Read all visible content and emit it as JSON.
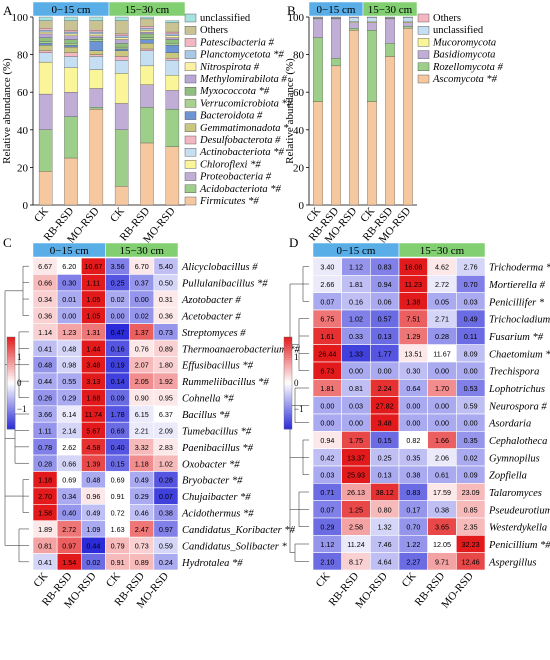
{
  "chart_data": [
    {
      "panel_letter": "A",
      "type": "bar",
      "stacked": true,
      "ylabel": "Relative abundance (%)",
      "ylim": [
        0,
        100
      ],
      "yticks": [
        "0",
        "20",
        "40",
        "60",
        "80",
        "100"
      ],
      "depth_headers": [
        "0−15 cm",
        "15−30 cm"
      ],
      "categories": [
        "CK",
        "RB-RSD",
        "MO-RSD",
        "CK",
        "RB-RSD",
        "MO-RSD"
      ],
      "series": [
        {
          "name": "Firmicutes *#",
          "color": "#f5c8a0",
          "values": [
            18,
            25,
            51,
            10,
            33,
            31
          ]
        },
        {
          "name": "Acidobacteriota *#",
          "color": "#9dcf8b",
          "values": [
            22,
            22,
            1,
            30,
            19,
            20
          ]
        },
        {
          "name": "Proteobacteria #",
          "color": "#c1aed6",
          "values": [
            19,
            13,
            10,
            14,
            12,
            10
          ]
        },
        {
          "name": "Chloroflexi *#",
          "color": "#fbf59a",
          "values": [
            17,
            13,
            10,
            16,
            10,
            8
          ]
        },
        {
          "name": "Actinobacteriota *#",
          "color": "#c6def1",
          "values": [
            5,
            6,
            7,
            7,
            8,
            8
          ]
        },
        {
          "name": "Desulfobacterota #",
          "color": "#f4b6c2",
          "values": [
            1,
            2,
            1,
            2,
            1,
            1
          ]
        },
        {
          "name": "Gemmatimonadota *",
          "color": "#c9c77f",
          "values": [
            3,
            3,
            2,
            3,
            3,
            3
          ]
        },
        {
          "name": "Bacteroidota #",
          "color": "#6e95d3",
          "values": [
            1,
            1,
            5,
            1,
            2,
            4
          ]
        },
        {
          "name": "Verrucomicrobiota *#",
          "color": "#a9d18e",
          "values": [
            1,
            1,
            1,
            1,
            1,
            1
          ]
        },
        {
          "name": "Myxococcota *#",
          "color": "#8fbf7f",
          "values": [
            2,
            2,
            1,
            2,
            2,
            2
          ]
        },
        {
          "name": "Methylomirabilota #",
          "color": "#b9a7d6",
          "values": [
            2,
            2,
            1,
            2,
            1,
            1
          ]
        },
        {
          "name": "Nitrospirota #",
          "color": "#fdf0a0",
          "values": [
            1,
            1,
            1,
            1,
            1,
            1
          ]
        },
        {
          "name": "Planctomycetota *#",
          "color": "#a8c8e8",
          "values": [
            1,
            1,
            1,
            1,
            1,
            1
          ]
        },
        {
          "name": "Patescibacteria #",
          "color": "#f4b6c2",
          "values": [
            1,
            1,
            1,
            1,
            1,
            1
          ]
        },
        {
          "name": "Others",
          "color": "#c9c292",
          "values": [
            4,
            5,
            5,
            7,
            4,
            5
          ]
        },
        {
          "name": "unclassified",
          "color": "#a5e2e0",
          "values": [
            2,
            2,
            2,
            2,
            1,
            1
          ]
        }
      ]
    },
    {
      "panel_letter": "B",
      "type": "bar",
      "stacked": true,
      "ylabel": "Relative abundance (%)",
      "ylim": [
        0,
        100
      ],
      "yticks": [
        "0",
        "20",
        "40",
        "60",
        "80",
        "100"
      ],
      "depth_headers": [
        "0−15 cm",
        "15−30 cm"
      ],
      "categories": [
        "CK",
        "RB-RSD",
        "MO-RSD",
        "CK",
        "RB-RSD",
        "MO-RSD"
      ],
      "series": [
        {
          "name": "Ascomycota *#",
          "color": "#f5c8a0",
          "values": [
            55,
            74,
            93,
            55,
            79,
            94
          ]
        },
        {
          "name": "Rozellomycota #",
          "color": "#9dcf8b",
          "values": [
            34,
            4,
            1,
            38,
            7,
            1
          ]
        },
        {
          "name": "Basidiomycota",
          "color": "#c1aed6",
          "values": [
            10,
            21,
            3,
            4,
            13,
            2
          ]
        },
        {
          "name": "Mucoromycota",
          "color": "#fbf59a",
          "values": [
            0.3,
            0.3,
            0.5,
            0.4,
            0.3,
            0.4
          ]
        },
        {
          "name": "unclassified",
          "color": "#c6def1",
          "values": [
            0.5,
            0.5,
            2.3,
            2.4,
            0.5,
            2.4
          ]
        },
        {
          "name": "Others",
          "color": "#f4b6c2",
          "values": [
            0.2,
            0.2,
            0.2,
            0.2,
            0.2,
            0.2
          ]
        }
      ]
    },
    {
      "panel_letter": "C",
      "type": "heatmap",
      "depth_headers": [
        "0−15 cm",
        "15−30 cm"
      ],
      "columns": [
        "CK",
        "RB-RSD",
        "MO-RSD",
        "CK",
        "RB-RSD",
        "MO-RSD"
      ],
      "colorbar": {
        "ticks": [
          "1",
          "0",
          "−1"
        ],
        "high": "#e31a1c",
        "mid": "#ffffff",
        "low": "#2b2bd9"
      },
      "rows": [
        {
          "label": "Alicyclobacillus #",
          "values": [
            "6.67",
            "6.20",
            "10.67",
            "3.56",
            "6.70",
            "5.40"
          ],
          "z": [
            0.1,
            0.0,
            1.0,
            -0.6,
            0.1,
            -0.3
          ]
        },
        {
          "label": "Pullulanibacillus *#",
          "values": [
            "0.66",
            "0.30",
            "1.11",
            "0.25",
            "0.37",
            "0.50"
          ],
          "z": [
            0.3,
            -0.6,
            1.0,
            -0.8,
            -0.5,
            -0.2
          ]
        },
        {
          "label": "Azotobacter #",
          "values": [
            "0.34",
            "0.01",
            "1.05",
            "0.02",
            "0.00",
            "0.31"
          ],
          "z": [
            0.2,
            -0.4,
            1.1,
            -0.4,
            -0.5,
            0.1
          ]
        },
        {
          "label": "Acetobacter #",
          "values": [
            "0.36",
            "0.00",
            "1.05",
            "0.00",
            "0.02",
            "0.36"
          ],
          "z": [
            0.2,
            -0.4,
            1.1,
            -0.5,
            -0.5,
            0.1
          ]
        },
        {
          "label": "Streptomyces #",
          "values": [
            "1.14",
            "1.23",
            "1.31",
            "0.47",
            "1.37",
            "0.73"
          ],
          "z": [
            0.2,
            0.4,
            0.6,
            -1.0,
            0.7,
            -0.5
          ]
        },
        {
          "label": "Thermoanaerobacterium *#",
          "values": [
            "0.41",
            "0.48",
            "1.44",
            "0.16",
            "0.76",
            "0.89"
          ],
          "z": [
            -0.3,
            -0.2,
            1.0,
            -0.8,
            0.1,
            0.2
          ]
        },
        {
          "label": "Effusibacillus *#",
          "values": [
            "0.48",
            "0.98",
            "3.48",
            "0.19",
            "2.07",
            "1.80"
          ],
          "z": [
            -0.5,
            -0.2,
            1.0,
            -0.9,
            0.3,
            0.2
          ]
        },
        {
          "label": "Rummeliibacillus *#",
          "values": [
            "0.44",
            "0.55",
            "3.13",
            "0.14",
            "2.05",
            "1.92"
          ],
          "z": [
            -0.4,
            -0.4,
            1.0,
            -0.9,
            0.5,
            0.4
          ]
        },
        {
          "label": "Cohnella *#",
          "values": [
            "0.26",
            "0.29",
            "1.68",
            "0.09",
            "0.90",
            "0.95"
          ],
          "z": [
            -0.5,
            -0.4,
            1.0,
            -0.7,
            0.1,
            0.1
          ]
        },
        {
          "label": "Bacillus *#",
          "values": [
            "3.66",
            "6.14",
            "11.74",
            "1.78",
            "6.15",
            "6.37"
          ],
          "z": [
            -0.4,
            -0.1,
            1.0,
            -0.8,
            -0.1,
            0.0
          ]
        },
        {
          "label": "Tumebacillus *#",
          "values": [
            "1.11",
            "2.14",
            "5.67",
            "0.69",
            "2.21",
            "2.09"
          ],
          "z": [
            -0.5,
            -0.2,
            1.0,
            -0.7,
            -0.1,
            -0.1
          ]
        },
        {
          "label": "Paenibacillus *#",
          "values": [
            "0.78",
            "2.62",
            "4.58",
            "0.40",
            "3.32",
            "2.83"
          ],
          "z": [
            -0.6,
            0.0,
            0.9,
            -0.8,
            0.3,
            0.1
          ]
        },
        {
          "label": "Oxobacter *#",
          "values": [
            "0.28",
            "0.66",
            "1.39",
            "0.15",
            "1.18",
            "1.02"
          ],
          "z": [
            -0.5,
            -0.2,
            0.8,
            -0.7,
            0.5,
            0.3
          ]
        },
        {
          "label": "Bryobacter *#",
          "values": [
            "1.18",
            "0.69",
            "0.48",
            "0.69",
            "0.49",
            "0.28"
          ],
          "z": [
            1.0,
            0.0,
            -0.4,
            0.0,
            -0.4,
            -0.8
          ]
        },
        {
          "label": "Chujaibacter *#",
          "values": [
            "2.70",
            "0.34",
            "0.96",
            "0.91",
            "0.29",
            "0.07"
          ],
          "z": [
            1.0,
            -0.4,
            0.1,
            0.0,
            -0.4,
            -0.9
          ]
        },
        {
          "label": "Acidothermus *#",
          "values": [
            "1.58",
            "0.40",
            "0.49",
            "0.72",
            "0.46",
            "0.38"
          ],
          "z": [
            1.0,
            -0.5,
            -0.3,
            0.0,
            -0.3,
            -0.5
          ]
        },
        {
          "label": "Candidatus_Koribacter *#",
          "values": [
            "1.89",
            "2.72",
            "1.09",
            "1.63",
            "2.47",
            "0.97"
          ],
          "z": [
            0.1,
            0.6,
            -0.4,
            0.0,
            0.6,
            -0.6
          ]
        },
        {
          "label": "Candidatus_Solibacter *",
          "values": [
            "0.81",
            "0.97",
            "0.44",
            "0.79",
            "0.73",
            "0.59"
          ],
          "z": [
            0.4,
            0.7,
            -1.0,
            0.3,
            0.2,
            -0.2
          ]
        },
        {
          "label": "Hydrotalea *#",
          "values": [
            "0.41",
            "1.54",
            "0.02",
            "0.91",
            "0.89",
            "0.24"
          ],
          "z": [
            -0.2,
            1.0,
            -0.7,
            0.3,
            0.3,
            -0.4
          ]
        }
      ]
    },
    {
      "panel_letter": "D",
      "type": "heatmap",
      "depth_headers": [
        "0−15 cm",
        "15−30 cm"
      ],
      "columns": [
        "CK",
        "RB-RSD",
        "MO-RSD",
        "CK",
        "RB-RSD",
        "MO-RSD"
      ],
      "colorbar": {
        "ticks": [
          "1",
          "0",
          "−1"
        ],
        "high": "#e31a1c",
        "mid": "#ffffff",
        "low": "#2b2bd9"
      },
      "rows": [
        {
          "label": "Trichoderma *#",
          "values": [
            "3.40",
            "1.12",
            "0.83",
            "16.08",
            "4.62",
            "2.76"
          ],
          "z": [
            -0.1,
            -0.5,
            -0.6,
            1.1,
            0.1,
            -0.2
          ]
        },
        {
          "label": "Mortierella #",
          "values": [
            "2.66",
            "1.81",
            "0.94",
            "11.23",
            "2.72",
            "0.70"
          ],
          "z": [
            -0.1,
            -0.3,
            -0.5,
            1.1,
            -0.1,
            -0.6
          ]
        },
        {
          "label": "Penicillifer *",
          "values": [
            "0.07",
            "0.16",
            "0.06",
            "1.38",
            "0.05",
            "0.03"
          ],
          "z": [
            -0.4,
            -0.3,
            -0.4,
            1.1,
            -0.4,
            -0.4
          ]
        },
        {
          "label": "Trichocladium *#",
          "values": [
            "6.75",
            "1.02",
            "0.57",
            "7.51",
            "2.71",
            "0.49"
          ],
          "z": [
            0.6,
            -0.6,
            -0.7,
            0.7,
            -0.2,
            -0.7
          ]
        },
        {
          "label": "Fusarium *#",
          "values": [
            "1.61",
            "0.33",
            "0.13",
            "1.29",
            "0.28",
            "0.11"
          ],
          "z": [
            0.9,
            -0.5,
            -0.7,
            0.6,
            -0.5,
            -0.7
          ]
        },
        {
          "label": "Chaetomium *",
          "values": [
            "26.44",
            "1.33",
            "1.77",
            "13.51",
            "11.67",
            "8.09"
          ],
          "z": [
            1.0,
            -0.9,
            -0.8,
            0.1,
            0.0,
            -0.3
          ]
        },
        {
          "label": "Trechispora",
          "values": [
            "6.73",
            "0.00",
            "0.00",
            "0.30",
            "0.00",
            "0.00"
          ],
          "z": [
            1.1,
            -0.4,
            -0.4,
            -0.3,
            -0.4,
            -0.4
          ]
        },
        {
          "label": "Lophotrichus",
          "values": [
            "1.81",
            "0.81",
            "2.24",
            "0.64",
            "1.70",
            "0.53"
          ],
          "z": [
            0.6,
            -0.3,
            0.9,
            -0.4,
            0.5,
            -0.6
          ]
        },
        {
          "label": "Neurospora #",
          "values": [
            "0.00",
            "0.03",
            "27.82",
            "0.00",
            "0.00",
            "0.59"
          ],
          "z": [
            -0.4,
            -0.4,
            1.1,
            -0.4,
            -0.4,
            -0.3
          ]
        },
        {
          "label": "Asordaria",
          "values": [
            "0.00",
            "0.00",
            "3.48",
            "0.00",
            "0.00",
            "0.00"
          ],
          "z": [
            -0.4,
            -0.4,
            1.1,
            -0.4,
            -0.4,
            -0.4
          ]
        },
        {
          "label": "Cephalotheca",
          "values": [
            "0.94",
            "1.75",
            "0.15",
            "0.82",
            "1.66",
            "0.35"
          ],
          "z": [
            0.1,
            0.8,
            -0.7,
            0.0,
            0.7,
            -0.5
          ]
        },
        {
          "label": "Gymnopilus",
          "values": [
            "0.42",
            "13.37",
            "0.25",
            "0.35",
            "2.06",
            "0.02"
          ],
          "z": [
            -0.3,
            1.1,
            -0.3,
            -0.3,
            -0.1,
            -0.4
          ]
        },
        {
          "label": "Zopfiella",
          "values": [
            "0.03",
            "25.93",
            "0.13",
            "0.38",
            "0.61",
            "0.09"
          ],
          "z": [
            -0.4,
            1.1,
            -0.4,
            -0.4,
            -0.4,
            -0.4
          ]
        },
        {
          "label": "Talaromyces",
          "values": [
            "0.71",
            "26.13",
            "38.12",
            "0.83",
            "17.59",
            "23.09"
          ],
          "z": [
            -0.7,
            0.4,
            0.9,
            -0.7,
            0.1,
            0.3
          ]
        },
        {
          "label": "Pseudeurotium #",
          "values": [
            "0.07",
            "1.25",
            "0.80",
            "0.17",
            "0.38",
            "0.85"
          ],
          "z": [
            -0.6,
            0.8,
            0.3,
            -0.5,
            -0.3,
            0.3
          ]
        },
        {
          "label": "Westerdykella",
          "values": [
            "0.29",
            "2.58",
            "1.32",
            "0.70",
            "3.65",
            "2.35"
          ],
          "z": [
            -0.7,
            0.4,
            -0.2,
            -0.5,
            0.8,
            0.3
          ]
        },
        {
          "label": "Penicillium *#",
          "values": [
            "1.12",
            "11.24",
            "7.46",
            "1.22",
            "12.05",
            "32.23"
          ],
          "z": [
            -0.5,
            -0.1,
            -0.3,
            -0.5,
            0.0,
            1.0
          ]
        },
        {
          "label": "Aspergillus",
          "values": [
            "2.10",
            "8.17",
            "4.64",
            "2.27",
            "9.71",
            "12.46"
          ],
          "z": [
            -0.7,
            0.2,
            -0.3,
            -0.7,
            0.4,
            0.8
          ]
        }
      ]
    }
  ]
}
